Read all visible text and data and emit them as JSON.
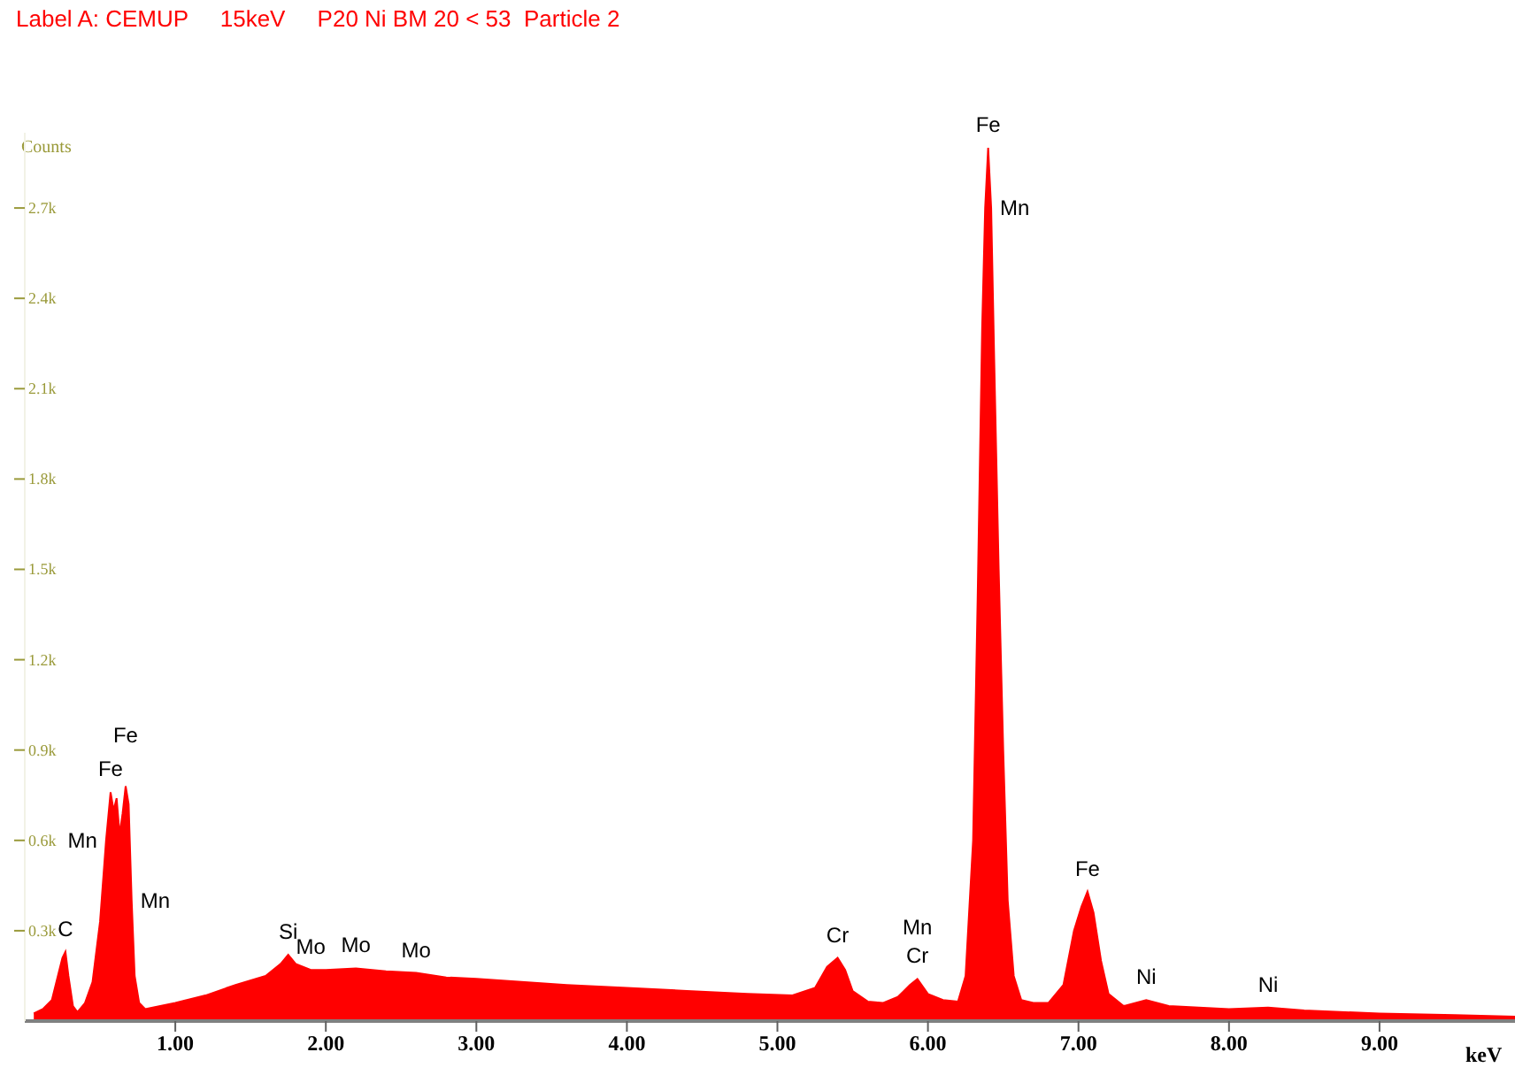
{
  "chart_data": {
    "type": "area",
    "title": "Label A: CEMUP     15keV     P20 Ni BM 20 < 53  Particle 2",
    "xlabel": "keV",
    "ylabel": "Counts",
    "color": "#ff0000",
    "x": [
      0.06,
      0.12,
      0.18,
      0.22,
      0.25,
      0.27,
      0.29,
      0.32,
      0.35,
      0.4,
      0.45,
      0.5,
      0.54,
      0.57,
      0.59,
      0.61,
      0.63,
      0.65,
      0.67,
      0.69,
      0.71,
      0.73,
      0.76,
      0.8,
      0.9,
      1.0,
      1.2,
      1.4,
      1.6,
      1.7,
      1.75,
      1.8,
      1.9,
      2.0,
      2.2,
      2.4,
      2.6,
      2.8,
      3.0,
      3.3,
      3.6,
      4.0,
      4.4,
      4.8,
      5.1,
      5.25,
      5.33,
      5.4,
      5.45,
      5.5,
      5.6,
      5.7,
      5.8,
      5.88,
      5.93,
      6.0,
      6.1,
      6.2,
      6.25,
      6.3,
      6.33,
      6.36,
      6.38,
      6.4,
      6.42,
      6.44,
      6.47,
      6.5,
      6.53,
      6.57,
      6.62,
      6.7,
      6.8,
      6.9,
      6.97,
      7.02,
      7.06,
      7.1,
      7.15,
      7.2,
      7.3,
      7.45,
      7.6,
      7.8,
      8.0,
      8.26,
      8.5,
      9.0,
      9.5,
      9.9
    ],
    "values": [
      25,
      40,
      70,
      150,
      210,
      230,
      150,
      50,
      30,
      60,
      130,
      330,
      600,
      760,
      700,
      740,
      620,
      690,
      780,
      720,
      400,
      150,
      60,
      40,
      50,
      60,
      85,
      120,
      150,
      190,
      220,
      190,
      170,
      170,
      175,
      165,
      160,
      145,
      140,
      130,
      120,
      110,
      100,
      90,
      85,
      110,
      180,
      210,
      170,
      100,
      65,
      60,
      80,
      120,
      140,
      90,
      70,
      65,
      150,
      600,
      1400,
      2300,
      2700,
      2900,
      2700,
      2200,
      1500,
      900,
      400,
      150,
      70,
      60,
      60,
      120,
      300,
      380,
      430,
      360,
      200,
      90,
      50,
      70,
      50,
      45,
      40,
      45,
      35,
      25,
      20,
      15
    ],
    "xlim": [
      0,
      9.9
    ],
    "xticks": [
      {
        "value": 1,
        "label": "1.00"
      },
      {
        "value": 2,
        "label": "2.00"
      },
      {
        "value": 3,
        "label": "3.00"
      },
      {
        "value": 4,
        "label": "4.00"
      },
      {
        "value": 5,
        "label": "5.00"
      },
      {
        "value": 6,
        "label": "6.00"
      },
      {
        "value": 7,
        "label": "7.00"
      },
      {
        "value": 8,
        "label": "8.00"
      },
      {
        "value": 9,
        "label": "9.00"
      }
    ],
    "ylim": [
      0,
      2950
    ],
    "yticks": [
      {
        "value": 300,
        "label": "0.3k"
      },
      {
        "value": 600,
        "label": "0.6k"
      },
      {
        "value": 900,
        "label": "0.9k"
      },
      {
        "value": 1200,
        "label": "1.2k"
      },
      {
        "value": 1500,
        "label": "1.5k"
      },
      {
        "value": 1800,
        "label": "1.8k"
      },
      {
        "value": 2100,
        "label": "2.1k"
      },
      {
        "value": 2400,
        "label": "2.4k"
      },
      {
        "value": 2700,
        "label": "2.7k"
      }
    ],
    "grid": false,
    "legend": false,
    "annotations": [
      {
        "text": "C",
        "x": 0.27,
        "y": 230
      },
      {
        "text": "Mn",
        "x": 0.54,
        "y": 600
      },
      {
        "text": "Mn",
        "x": 0.71,
        "y": 400
      },
      {
        "text": "Fe",
        "x": 0.57,
        "y": 760
      },
      {
        "text": "Fe",
        "x": 0.67,
        "y": 780
      },
      {
        "text": "Si",
        "x": 1.75,
        "y": 220
      },
      {
        "text": "Mo",
        "x": 1.9,
        "y": 170
      },
      {
        "text": "Mo",
        "x": 2.2,
        "y": 175
      },
      {
        "text": "Mo",
        "x": 2.6,
        "y": 160
      },
      {
        "text": "Cr",
        "x": 5.4,
        "y": 210
      },
      {
        "text": "Cr",
        "x": 5.93,
        "y": 140
      },
      {
        "text": "Mn",
        "x": 5.93,
        "y": 140
      },
      {
        "text": "Fe",
        "x": 6.4,
        "y": 2900
      },
      {
        "text": "Mn",
        "x": 6.42,
        "y": 2700
      },
      {
        "text": "Fe",
        "x": 7.06,
        "y": 430
      },
      {
        "text": "Ni",
        "x": 7.45,
        "y": 70
      },
      {
        "text": "Ni",
        "x": 8.26,
        "y": 45
      }
    ]
  }
}
